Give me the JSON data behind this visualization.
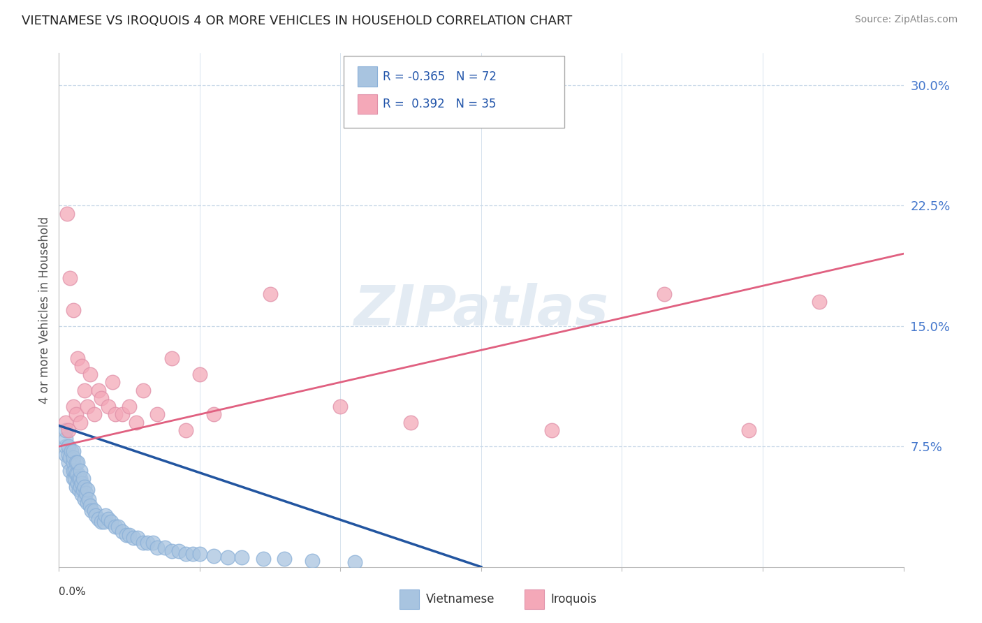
{
  "title": "VIETNAMESE VS IROQUOIS 4 OR MORE VEHICLES IN HOUSEHOLD CORRELATION CHART",
  "source": "Source: ZipAtlas.com",
  "ylabel": "4 or more Vehicles in Household",
  "y_ticks": [
    0.0,
    0.075,
    0.15,
    0.225,
    0.3
  ],
  "y_tick_labels": [
    "",
    "7.5%",
    "15.0%",
    "22.5%",
    "30.0%"
  ],
  "x_min": 0.0,
  "x_max": 0.6,
  "y_min": 0.0,
  "y_max": 0.32,
  "vietnamese_R": -0.365,
  "vietnamese_N": 72,
  "iroquois_R": 0.392,
  "iroquois_N": 35,
  "vietnamese_color": "#a8c4e0",
  "iroquois_color": "#f4a8b8",
  "vietnamese_line_color": "#2255a0",
  "iroquois_line_color": "#e06080",
  "legend_label_vietnamese": "Vietnamese",
  "legend_label_iroquois": "Iroquois",
  "watermark_text": "ZIPatlas",
  "background_color": "#ffffff",
  "grid_color": "#c8d8e8",
  "vietnamese_x": [
    0.005,
    0.005,
    0.005,
    0.005,
    0.007,
    0.007,
    0.007,
    0.008,
    0.008,
    0.009,
    0.01,
    0.01,
    0.01,
    0.01,
    0.01,
    0.011,
    0.011,
    0.012,
    0.012,
    0.012,
    0.013,
    0.013,
    0.013,
    0.014,
    0.014,
    0.015,
    0.015,
    0.015,
    0.016,
    0.016,
    0.017,
    0.017,
    0.018,
    0.018,
    0.019,
    0.02,
    0.02,
    0.021,
    0.022,
    0.023,
    0.025,
    0.026,
    0.028,
    0.03,
    0.032,
    0.033,
    0.035,
    0.037,
    0.04,
    0.042,
    0.045,
    0.048,
    0.05,
    0.053,
    0.056,
    0.06,
    0.063,
    0.067,
    0.07,
    0.075,
    0.08,
    0.085,
    0.09,
    0.095,
    0.1,
    0.11,
    0.12,
    0.13,
    0.145,
    0.16,
    0.18,
    0.21
  ],
  "vietnamese_y": [
    0.07,
    0.075,
    0.08,
    0.085,
    0.065,
    0.07,
    0.075,
    0.06,
    0.068,
    0.072,
    0.055,
    0.06,
    0.065,
    0.068,
    0.072,
    0.055,
    0.06,
    0.05,
    0.058,
    0.065,
    0.052,
    0.058,
    0.065,
    0.048,
    0.055,
    0.05,
    0.055,
    0.06,
    0.045,
    0.052,
    0.048,
    0.055,
    0.042,
    0.05,
    0.046,
    0.04,
    0.048,
    0.042,
    0.038,
    0.035,
    0.035,
    0.032,
    0.03,
    0.028,
    0.028,
    0.032,
    0.03,
    0.028,
    0.025,
    0.025,
    0.022,
    0.02,
    0.02,
    0.018,
    0.018,
    0.015,
    0.015,
    0.015,
    0.012,
    0.012,
    0.01,
    0.01,
    0.008,
    0.008,
    0.008,
    0.007,
    0.006,
    0.006,
    0.005,
    0.005,
    0.004,
    0.003
  ],
  "iroquois_x": [
    0.005,
    0.006,
    0.007,
    0.008,
    0.01,
    0.01,
    0.012,
    0.013,
    0.015,
    0.016,
    0.018,
    0.02,
    0.022,
    0.025,
    0.028,
    0.03,
    0.035,
    0.038,
    0.04,
    0.045,
    0.05,
    0.055,
    0.06,
    0.07,
    0.08,
    0.09,
    0.1,
    0.11,
    0.15,
    0.2,
    0.25,
    0.35,
    0.43,
    0.49,
    0.54
  ],
  "iroquois_y": [
    0.09,
    0.22,
    0.085,
    0.18,
    0.1,
    0.16,
    0.095,
    0.13,
    0.09,
    0.125,
    0.11,
    0.1,
    0.12,
    0.095,
    0.11,
    0.105,
    0.1,
    0.115,
    0.095,
    0.095,
    0.1,
    0.09,
    0.11,
    0.095,
    0.13,
    0.085,
    0.12,
    0.095,
    0.17,
    0.1,
    0.09,
    0.085,
    0.17,
    0.085,
    0.165
  ],
  "viet_trend_x": [
    0.0,
    0.3
  ],
  "viet_trend_y": [
    0.088,
    0.0
  ],
  "iroq_trend_x": [
    0.0,
    0.6
  ],
  "iroq_trend_y": [
    0.075,
    0.195
  ]
}
